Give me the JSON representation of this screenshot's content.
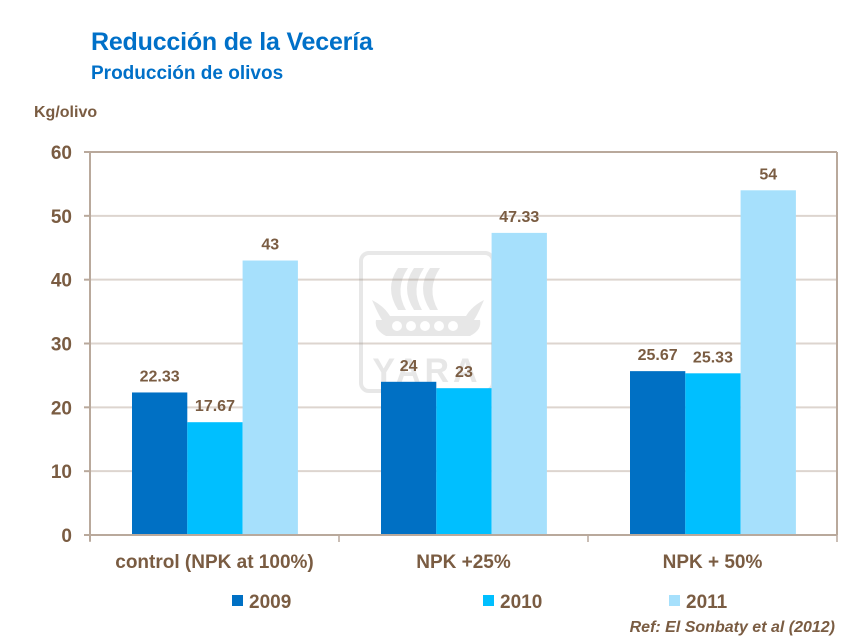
{
  "header": {
    "title": "Reducción de la Vecería",
    "subtitle": "Producción de olivos"
  },
  "watermark": {
    "text": "YARA"
  },
  "reference": "Ref: El Sonbaty et al (2012)",
  "colors": {
    "series_2009": "#0070c4",
    "series_2010": "#00bfff",
    "series_2011": "#a6e0fc",
    "text": "#7a5c42",
    "axis": "#b9a99c",
    "grid": "#ddd5cf",
    "title": "#0070c8"
  },
  "chart_data": {
    "type": "bar",
    "title": "Reducción de la Vecería",
    "subtitle": "Producción de olivos",
    "xlabel": "",
    "ylabel": "Kg/olivo",
    "ylim": [
      0,
      60
    ],
    "yticks": [
      0,
      10,
      20,
      30,
      40,
      50,
      60
    ],
    "ytick_labels": [
      "0",
      "10",
      "20",
      "30",
      "40",
      "50",
      "60"
    ],
    "grid": true,
    "legend_position": "bottom",
    "categories": [
      "control (NPK at 100%)",
      "NPK +25%",
      "NPK + 50%"
    ],
    "series": [
      {
        "name": "2009",
        "values": [
          22.33,
          24,
          25.67
        ],
        "labels": [
          "22.33",
          "24",
          "25.67"
        ]
      },
      {
        "name": "2010",
        "values": [
          17.67,
          23,
          25.33
        ],
        "labels": [
          "17.67",
          "23",
          "25.33"
        ]
      },
      {
        "name": "2011",
        "values": [
          43,
          47.33,
          54
        ],
        "labels": [
          "43",
          "47.33",
          "54"
        ]
      }
    ]
  }
}
